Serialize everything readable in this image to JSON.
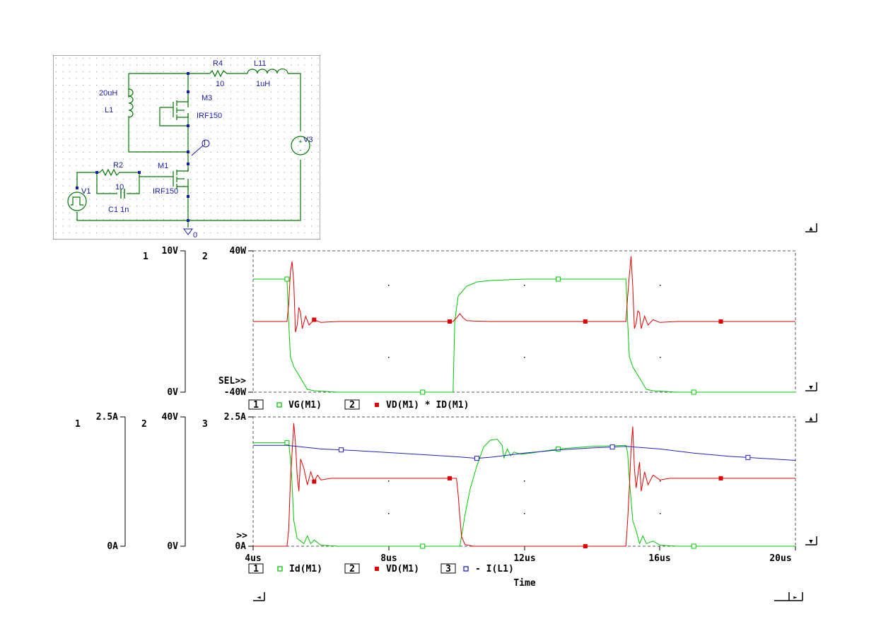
{
  "schematic": {
    "labels": {
      "r4_name": "R4",
      "r4_value": "10",
      "l11_name": "L11",
      "l11_value": "1uH",
      "l1_value": "20uH",
      "l1_name": "L1",
      "m3_name": "M3",
      "m3_model": "IRF150",
      "v3_name": "V3",
      "probe": "I",
      "m1_name": "M1",
      "m1_model": "IRF150",
      "r2_name": "R2",
      "r2_value": "10",
      "v1_name": "V1",
      "c1_label": "C1 1n",
      "gnd": "0"
    }
  },
  "ui": {
    "time_label": "Time",
    "sel_marker": "SEL>>",
    "marker_bottom": ">>",
    "scroll_up": "▲",
    "scroll_down": "▼",
    "scroll_left": "◄",
    "scroll_right": "►"
  },
  "colors": {
    "green": "#00c800",
    "red": "#e00000",
    "blue": "#2020c8",
    "schematic_wire": "#007800",
    "schematic_text": "#1a1aa6"
  },
  "chart_data": [
    {
      "type": "line",
      "axes": [
        {
          "id": "1",
          "ylim_labels": [
            "0V",
            "10V"
          ],
          "ylim": [
            0,
            10
          ]
        },
        {
          "id": "2",
          "ylim_labels": [
            "-40W",
            "40W"
          ],
          "ylim": [
            -40,
            40
          ]
        }
      ],
      "xlim": [
        4,
        20
      ],
      "x_unit": "us",
      "grid": "dotted",
      "legend": [
        {
          "axis": "1",
          "marker": "open-square",
          "color": "green",
          "name": "VG(M1)"
        },
        {
          "axis": "2",
          "marker": "filled-square",
          "color": "red",
          "name": "VD(M1) * ID(M1)"
        }
      ],
      "series": [
        {
          "name": "VG(M1)",
          "axis": "1",
          "points": [
            [
              4,
              8.0
            ],
            [
              5.0,
              8.0
            ],
            [
              5.05,
              5.0
            ],
            [
              5.1,
              2.5
            ],
            [
              5.2,
              1.8
            ],
            [
              5.4,
              1.0
            ],
            [
              5.6,
              0.2
            ],
            [
              5.8,
              0.1
            ],
            [
              6.5,
              0.0
            ],
            [
              9.9,
              0.0
            ],
            [
              9.95,
              5.0
            ],
            [
              10.05,
              6.8
            ],
            [
              10.3,
              7.5
            ],
            [
              10.6,
              7.8
            ],
            [
              11,
              7.9
            ],
            [
              12,
              8.0
            ],
            [
              15,
              8.0
            ],
            [
              15.05,
              5.0
            ],
            [
              15.1,
              2.5
            ],
            [
              15.2,
              1.8
            ],
            [
              15.4,
              1.0
            ],
            [
              15.6,
              0.2
            ],
            [
              15.8,
              0.1
            ],
            [
              16.5,
              0.0
            ],
            [
              20,
              0.0
            ]
          ]
        },
        {
          "name": "VD(M1) * ID(M1)",
          "axis": "2",
          "points": [
            [
              4,
              0
            ],
            [
              5.0,
              0
            ],
            [
              5.05,
              10
            ],
            [
              5.1,
              28
            ],
            [
              5.15,
              34
            ],
            [
              5.2,
              22
            ],
            [
              5.25,
              -6
            ],
            [
              5.3,
              -2
            ],
            [
              5.35,
              8
            ],
            [
              5.4,
              5
            ],
            [
              5.45,
              -4
            ],
            [
              5.55,
              3
            ],
            [
              5.65,
              -2
            ],
            [
              5.8,
              1
            ],
            [
              6.0,
              -0.5
            ],
            [
              6.5,
              0
            ],
            [
              9.9,
              0
            ],
            [
              10.0,
              2.0
            ],
            [
              10.1,
              4.5
            ],
            [
              10.2,
              2.0
            ],
            [
              10.3,
              0.5
            ],
            [
              10.5,
              0.3
            ],
            [
              11,
              0
            ],
            [
              15,
              0
            ],
            [
              15.05,
              14
            ],
            [
              15.1,
              26
            ],
            [
              15.15,
              37
            ],
            [
              15.2,
              20
            ],
            [
              15.25,
              -4
            ],
            [
              15.3,
              -1
            ],
            [
              15.35,
              6
            ],
            [
              15.4,
              5
            ],
            [
              15.45,
              -4
            ],
            [
              15.55,
              3
            ],
            [
              15.65,
              -2
            ],
            [
              15.8,
              1
            ],
            [
              16.0,
              -0.5
            ],
            [
              16.5,
              0
            ],
            [
              20,
              0
            ]
          ]
        }
      ]
    },
    {
      "type": "line",
      "axes": [
        {
          "id": "1",
          "ylim_labels": [
            "0A",
            "2.5A"
          ],
          "ylim": [
            0,
            2.5
          ]
        },
        {
          "id": "2",
          "ylim_labels": [
            "0V",
            "40V"
          ],
          "ylim": [
            0,
            40
          ]
        },
        {
          "id": "3",
          "ylim_labels": [
            "0A",
            "2.5A"
          ],
          "ylim": [
            0,
            2.5
          ]
        }
      ],
      "xlim": [
        4,
        20
      ],
      "xticks": [
        "4us",
        "8us",
        "12us",
        "16us",
        "20us"
      ],
      "xticks_values": [
        4,
        8,
        12,
        16,
        20
      ],
      "x_unit": "us",
      "xlabel": "Time",
      "grid": "dotted",
      "legend": [
        {
          "axis": "1",
          "marker": "open-square",
          "color": "green",
          "name": "Id(M1)"
        },
        {
          "axis": "2",
          "marker": "filled-square",
          "color": "red",
          "name": "VD(M1)"
        },
        {
          "axis": "3",
          "marker": "open-square",
          "color": "blue",
          "name": "- I(L1)"
        }
      ],
      "series": [
        {
          "name": "Id(M1)",
          "axis": "1",
          "points": [
            [
              4,
              2.0
            ],
            [
              5.05,
              2.0
            ],
            [
              5.1,
              1.7
            ],
            [
              5.15,
              1.2
            ],
            [
              5.2,
              0.5
            ],
            [
              5.3,
              0.15
            ],
            [
              5.5,
              0.05
            ],
            [
              5.6,
              0.2
            ],
            [
              5.7,
              0.05
            ],
            [
              5.8,
              0.12
            ],
            [
              6.0,
              0.02
            ],
            [
              6.5,
              0.0
            ],
            [
              10.1,
              0.0
            ],
            [
              10.15,
              0.2
            ],
            [
              10.25,
              0.6
            ],
            [
              10.4,
              1.1
            ],
            [
              10.6,
              1.55
            ],
            [
              10.8,
              1.92
            ],
            [
              11.0,
              2.05
            ],
            [
              11.2,
              2.07
            ],
            [
              11.35,
              1.95
            ],
            [
              11.4,
              1.7
            ],
            [
              11.5,
              1.88
            ],
            [
              11.6,
              1.75
            ],
            [
              11.7,
              1.82
            ],
            [
              11.9,
              1.78
            ],
            [
              12.2,
              1.8
            ],
            [
              13,
              1.88
            ],
            [
              14,
              1.93
            ],
            [
              15.0,
              1.95
            ],
            [
              15.05,
              1.8
            ],
            [
              15.1,
              1.3
            ],
            [
              15.2,
              0.5
            ],
            [
              15.3,
              0.3
            ],
            [
              15.4,
              0.05
            ],
            [
              15.5,
              0.2
            ],
            [
              15.6,
              0.05
            ],
            [
              15.8,
              0.1
            ],
            [
              16.0,
              0.02
            ],
            [
              16.5,
              0.0
            ],
            [
              20,
              0.0
            ]
          ]
        },
        {
          "name": "VD(M1)",
          "axis": "2",
          "points": [
            [
              4,
              0
            ],
            [
              5.0,
              0
            ],
            [
              5.05,
              5
            ],
            [
              5.1,
              20
            ],
            [
              5.2,
              38
            ],
            [
              5.25,
              32
            ],
            [
              5.3,
              22
            ],
            [
              5.35,
              17
            ],
            [
              5.4,
              27
            ],
            [
              5.5,
              24
            ],
            [
              5.6,
              19
            ],
            [
              5.7,
              23
            ],
            [
              5.8,
              20
            ],
            [
              5.9,
              22
            ],
            [
              6.0,
              20.5
            ],
            [
              6.3,
              21
            ],
            [
              7,
              21
            ],
            [
              10.0,
              21
            ],
            [
              10.05,
              16
            ],
            [
              10.1,
              9
            ],
            [
              10.15,
              3
            ],
            [
              10.25,
              0.5
            ],
            [
              10.5,
              0
            ],
            [
              15,
              0
            ],
            [
              15.05,
              8
            ],
            [
              15.1,
              18
            ],
            [
              15.15,
              30
            ],
            [
              15.2,
              37
            ],
            [
              15.25,
              24
            ],
            [
              15.3,
              18
            ],
            [
              15.4,
              26
            ],
            [
              15.45,
              17
            ],
            [
              15.55,
              23
            ],
            [
              15.65,
              19
            ],
            [
              15.8,
              22
            ],
            [
              16.0,
              20.5
            ],
            [
              16.3,
              21
            ],
            [
              20,
              21
            ]
          ]
        },
        {
          "name": "- I(L1)",
          "axis": "3",
          "points": [
            [
              4,
              1.95
            ],
            [
              5.0,
              1.95
            ],
            [
              6,
              1.88
            ],
            [
              7,
              1.85
            ],
            [
              8,
              1.81
            ],
            [
              9,
              1.77
            ],
            [
              10,
              1.73
            ],
            [
              10.6,
              1.7
            ],
            [
              11,
              1.72
            ],
            [
              12,
              1.8
            ],
            [
              13,
              1.86
            ],
            [
              14,
              1.9
            ],
            [
              15,
              1.93
            ],
            [
              16,
              1.88
            ],
            [
              17,
              1.8
            ],
            [
              18,
              1.74
            ],
            [
              19,
              1.7
            ],
            [
              20,
              1.66
            ]
          ]
        }
      ]
    }
  ]
}
